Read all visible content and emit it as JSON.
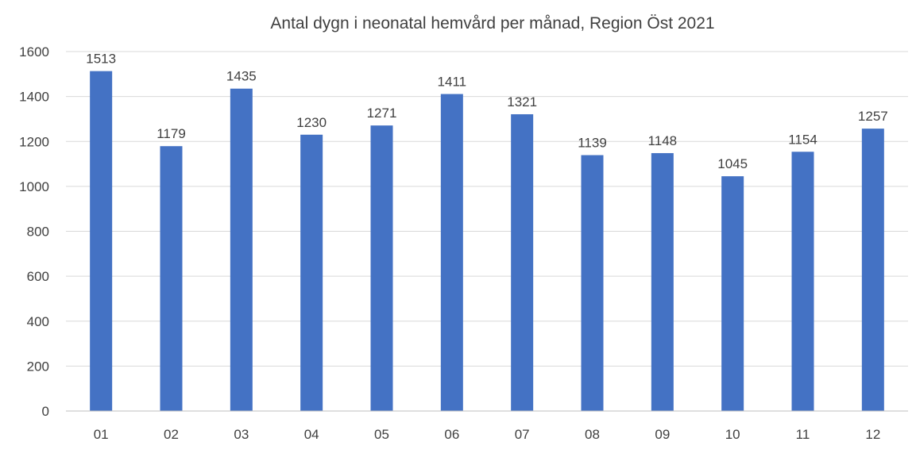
{
  "chart_data": {
    "type": "bar",
    "title": "Antal dygn i neonatal hemvård per månad, Region Öst 2021",
    "xlabel": "",
    "ylabel": "",
    "categories": [
      "01",
      "02",
      "03",
      "04",
      "05",
      "06",
      "07",
      "08",
      "09",
      "10",
      "11",
      "12"
    ],
    "series": [
      {
        "values": [
          1513,
          1179,
          1435,
          1230,
          1271,
          1411,
          1321,
          1139,
          1148,
          1045,
          1154,
          1257
        ]
      }
    ],
    "ylim": [
      0,
      1600
    ],
    "yticks": [
      "0",
      "200",
      "400",
      "600",
      "800",
      "1000",
      "1200",
      "1400",
      "1600"
    ],
    "bar_color": "#4472c4",
    "grid": true,
    "legend": "none"
  }
}
